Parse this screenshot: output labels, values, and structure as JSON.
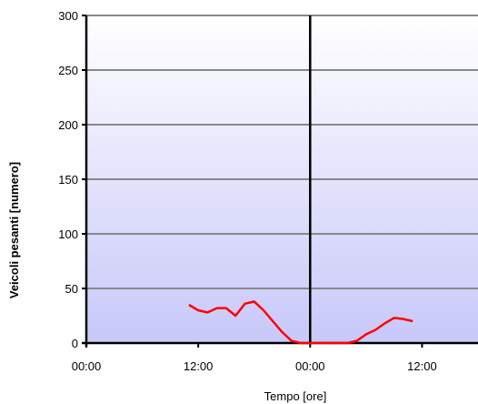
{
  "chart_data": {
    "type": "line",
    "title": "",
    "xlabel": "Tempo [ore]",
    "ylabel": "Veicoli pesanti [numero]",
    "ylim": [
      0,
      300
    ],
    "yticks": [
      0,
      50,
      100,
      150,
      200,
      250,
      300
    ],
    "ytick_labels": [
      "0",
      "50",
      "100",
      "150",
      "200",
      "250",
      "300"
    ],
    "xlim_hours": [
      0,
      42
    ],
    "xticks_hours": [
      0,
      12,
      24,
      36
    ],
    "xtick_labels": [
      "00:00",
      "12:00",
      "00:00",
      "12:00"
    ],
    "day_boundary_hours": 24,
    "grid": true,
    "series": [
      {
        "color": "#ff0000",
        "x_hours": [
          11,
          12,
          13,
          14,
          15,
          16,
          17,
          18,
          19,
          20,
          21,
          22,
          23,
          24,
          25,
          26,
          27,
          28,
          29,
          30,
          31,
          32,
          33,
          34,
          35
        ],
        "values": [
          35,
          30,
          28,
          32,
          32,
          25,
          36,
          38,
          30,
          20,
          10,
          2,
          0,
          0,
          0,
          0,
          0,
          0,
          2,
          8,
          12,
          18,
          23,
          22,
          20
        ]
      }
    ]
  }
}
